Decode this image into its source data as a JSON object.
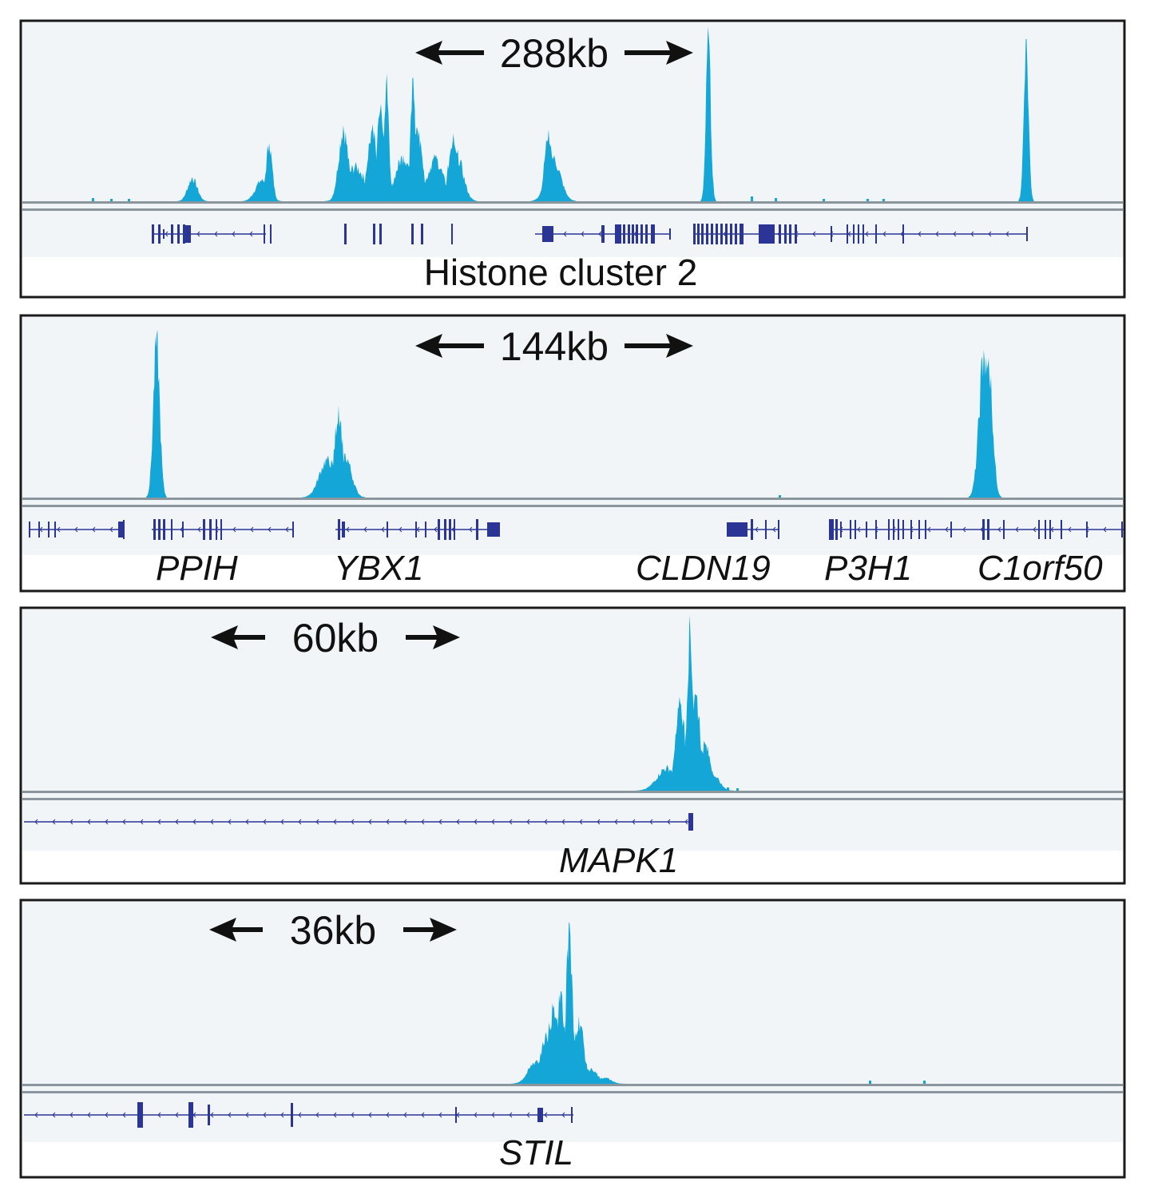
{
  "colors": {
    "signal": "#15a6d8",
    "gene": "#2a3596",
    "track_bg": "#f2f5f8",
    "axis": "#8a969c",
    "frame": "#1a1a1a",
    "arrow": "#111111"
  },
  "panels": [
    {
      "scale_label": "288kb",
      "label": "Histone cluster 2",
      "genes": [],
      "signal": {
        "baseline_noise": [
          [
            115,
            4
          ],
          [
            138,
            3
          ],
          [
            160,
            3
          ],
          [
            940,
            6
          ],
          [
            970,
            4
          ],
          [
            1030,
            3
          ],
          [
            1085,
            3
          ],
          [
            1105,
            3
          ]
        ],
        "peaks": [
          {
            "center": 241,
            "height": 30,
            "width": 6
          },
          {
            "center": 328,
            "height": 28,
            "width": 8
          },
          {
            "center": 337,
            "height": 73,
            "width": 4
          },
          {
            "center": 430,
            "height": 95,
            "width": 6
          },
          {
            "center": 445,
            "height": 45,
            "width": 12
          },
          {
            "center": 466,
            "height": 90,
            "width": 6
          },
          {
            "center": 477,
            "height": 122,
            "width": 5
          },
          {
            "center": 484,
            "height": 160,
            "width": 3
          },
          {
            "center": 505,
            "height": 58,
            "width": 10
          },
          {
            "center": 517,
            "height": 155,
            "width": 3
          },
          {
            "center": 523,
            "height": 90,
            "width": 6
          },
          {
            "center": 545,
            "height": 55,
            "width": 10
          },
          {
            "center": 568,
            "height": 85,
            "width": 6
          },
          {
            "center": 572,
            "height": 60,
            "width": 8
          },
          {
            "center": 687,
            "height": 90,
            "width": 5
          },
          {
            "center": 693,
            "height": 55,
            "width": 9
          },
          {
            "center": 887,
            "height": 207,
            "width": 3
          },
          {
            "center": 1285,
            "height": 203,
            "width": 3
          }
        ]
      },
      "gene_track": {
        "lines": [
          [
            193,
            233
          ],
          [
            233,
            333
          ],
          [
            670,
            840
          ],
          [
            870,
            960
          ],
          [
            960,
            1285
          ]
        ],
        "blocks": [
          [
            190,
            3,
            24
          ],
          [
            198,
            3,
            24
          ],
          [
            204,
            2,
            12
          ],
          [
            214,
            3,
            24
          ],
          [
            222,
            3,
            24
          ],
          [
            229,
            3,
            24
          ],
          [
            232,
            7,
            22
          ],
          [
            330,
            2,
            24
          ],
          [
            338,
            2,
            24
          ],
          [
            431,
            3,
            26
          ],
          [
            467,
            3,
            26
          ],
          [
            475,
            3,
            26
          ],
          [
            515,
            3,
            26
          ],
          [
            527,
            3,
            26
          ],
          [
            565,
            2,
            26
          ],
          [
            679,
            14,
            20
          ],
          [
            753,
            4,
            22
          ],
          [
            770,
            8,
            24
          ],
          [
            780,
            3,
            24
          ],
          [
            786,
            3,
            24
          ],
          [
            791,
            3,
            24
          ],
          [
            796,
            3,
            24
          ],
          [
            802,
            3,
            24
          ],
          [
            808,
            3,
            24
          ],
          [
            815,
            5,
            24
          ],
          [
            838,
            2,
            14
          ],
          [
            868,
            3,
            26
          ],
          [
            873,
            3,
            26
          ],
          [
            878,
            3,
            26
          ],
          [
            884,
            3,
            26
          ],
          [
            890,
            3,
            26
          ],
          [
            896,
            3,
            26
          ],
          [
            902,
            3,
            26
          ],
          [
            908,
            3,
            26
          ],
          [
            914,
            3,
            26
          ],
          [
            920,
            3,
            26
          ],
          [
            926,
            5,
            26
          ],
          [
            950,
            20,
            24
          ],
          [
            975,
            3,
            24
          ],
          [
            982,
            3,
            24
          ],
          [
            988,
            3,
            24
          ],
          [
            995,
            3,
            24
          ],
          [
            1040,
            2,
            20
          ],
          [
            1060,
            2,
            24
          ],
          [
            1068,
            2,
            24
          ],
          [
            1074,
            2,
            24
          ],
          [
            1080,
            2,
            24
          ],
          [
            1096,
            2,
            24
          ],
          [
            1130,
            2,
            24
          ],
          [
            1285,
            2,
            18
          ]
        ]
      }
    },
    {
      "scale_label": "144kb",
      "label": "",
      "genes": [
        {
          "name": "PPIH",
          "x": 195
        },
        {
          "name": "YBX1",
          "x": 418
        },
        {
          "name": "CLDN19",
          "x": 796
        },
        {
          "name": "P3H1",
          "x": 1032
        },
        {
          "name": "C1orf50",
          "x": 1224
        }
      ],
      "signal": {
        "baseline_noise": [
          [
            975,
            3
          ]
        ],
        "peaks": [
          {
            "center": 196,
            "height": 205,
            "width": 4
          },
          {
            "center": 410,
            "height": 50,
            "width": 10
          },
          {
            "center": 424,
            "height": 115,
            "width": 5
          },
          {
            "center": 432,
            "height": 55,
            "width": 8
          },
          {
            "center": 1232,
            "height": 185,
            "width": 6
          },
          {
            "center": 1238,
            "height": 175,
            "width": 5
          }
        ]
      },
      "gene_track": {
        "lines": [
          [
            36,
            156
          ],
          [
            190,
            368
          ],
          [
            420,
            625
          ],
          [
            910,
            975
          ],
          [
            1038,
            1408
          ]
        ],
        "blocks": [
          [
            36,
            2,
            20
          ],
          [
            48,
            2,
            20
          ],
          [
            60,
            2,
            20
          ],
          [
            68,
            2,
            20
          ],
          [
            148,
            8,
            20
          ],
          [
            154,
            2,
            24
          ],
          [
            192,
            3,
            26
          ],
          [
            198,
            3,
            26
          ],
          [
            204,
            3,
            26
          ],
          [
            214,
            2,
            26
          ],
          [
            228,
            2,
            20
          ],
          [
            254,
            3,
            26
          ],
          [
            262,
            3,
            26
          ],
          [
            270,
            2,
            26
          ],
          [
            276,
            2,
            26
          ],
          [
            366,
            2,
            20
          ],
          [
            423,
            3,
            26
          ],
          [
            428,
            4,
            20
          ],
          [
            484,
            2,
            20
          ],
          [
            520,
            2,
            20
          ],
          [
            532,
            2,
            20
          ],
          [
            548,
            3,
            26
          ],
          [
            556,
            3,
            26
          ],
          [
            562,
            3,
            26
          ],
          [
            568,
            2,
            26
          ],
          [
            596,
            3,
            26
          ],
          [
            610,
            16,
            18
          ],
          [
            910,
            26,
            18
          ],
          [
            940,
            3,
            26
          ],
          [
            958,
            2,
            24
          ],
          [
            974,
            2,
            24
          ],
          [
            1038,
            6,
            26
          ],
          [
            1046,
            3,
            26
          ],
          [
            1052,
            2,
            20
          ],
          [
            1064,
            2,
            24
          ],
          [
            1070,
            2,
            24
          ],
          [
            1084,
            2,
            20
          ],
          [
            1096,
            2,
            24
          ],
          [
            1112,
            2,
            26
          ],
          [
            1118,
            2,
            26
          ],
          [
            1124,
            2,
            26
          ],
          [
            1130,
            2,
            24
          ],
          [
            1140,
            2,
            24
          ],
          [
            1150,
            2,
            24
          ],
          [
            1158,
            2,
            24
          ],
          [
            1190,
            2,
            20
          ],
          [
            1230,
            3,
            26
          ],
          [
            1236,
            3,
            26
          ],
          [
            1256,
            2,
            24
          ],
          [
            1300,
            2,
            24
          ],
          [
            1308,
            2,
            24
          ],
          [
            1314,
            2,
            24
          ],
          [
            1328,
            2,
            24
          ],
          [
            1360,
            2,
            20
          ],
          [
            1404,
            2,
            20
          ]
        ]
      }
    },
    {
      "scale_label": "60kb",
      "label": "",
      "genes": [
        {
          "name": "MAPK1",
          "x": 700
        }
      ],
      "signal": {
        "baseline_noise": [
          [
            910,
            4
          ],
          [
            922,
            3
          ]
        ],
        "peaks": [
          {
            "center": 835,
            "height": 30,
            "width": 12
          },
          {
            "center": 852,
            "height": 110,
            "width": 6
          },
          {
            "center": 864,
            "height": 205,
            "width": 4
          },
          {
            "center": 872,
            "height": 120,
            "width": 5
          },
          {
            "center": 882,
            "height": 60,
            "width": 8
          },
          {
            "center": 893,
            "height": 20,
            "width": 8
          }
        ]
      },
      "gene_track": {
        "lines": [
          [
            30,
            866
          ]
        ],
        "blocks": [
          [
            862,
            6,
            22
          ]
        ]
      }
    },
    {
      "scale_label": "36kb",
      "label": "",
      "genes": [
        {
          "name": "STIL",
          "x": 625
        }
      ],
      "signal": {
        "baseline_noise": [
          [
            1088,
            4
          ],
          [
            1156,
            4
          ]
        ],
        "peaks": [
          {
            "center": 672,
            "height": 30,
            "width": 10
          },
          {
            "center": 683,
            "height": 62,
            "width": 6
          },
          {
            "center": 693,
            "height": 95,
            "width": 7
          },
          {
            "center": 702,
            "height": 115,
            "width": 5
          },
          {
            "center": 713,
            "height": 200,
            "width": 4
          },
          {
            "center": 725,
            "height": 85,
            "width": 6
          },
          {
            "center": 740,
            "height": 20,
            "width": 8
          },
          {
            "center": 757,
            "height": 8,
            "width": 8
          }
        ]
      },
      "gene_track": {
        "lines": [
          [
            30,
            718
          ]
        ],
        "blocks": [
          [
            172,
            7,
            32
          ],
          [
            236,
            6,
            32
          ],
          [
            260,
            3,
            26
          ],
          [
            364,
            3,
            30
          ],
          [
            570,
            2,
            20
          ],
          [
            673,
            7,
            18
          ],
          [
            715,
            2,
            20
          ]
        ]
      }
    }
  ]
}
